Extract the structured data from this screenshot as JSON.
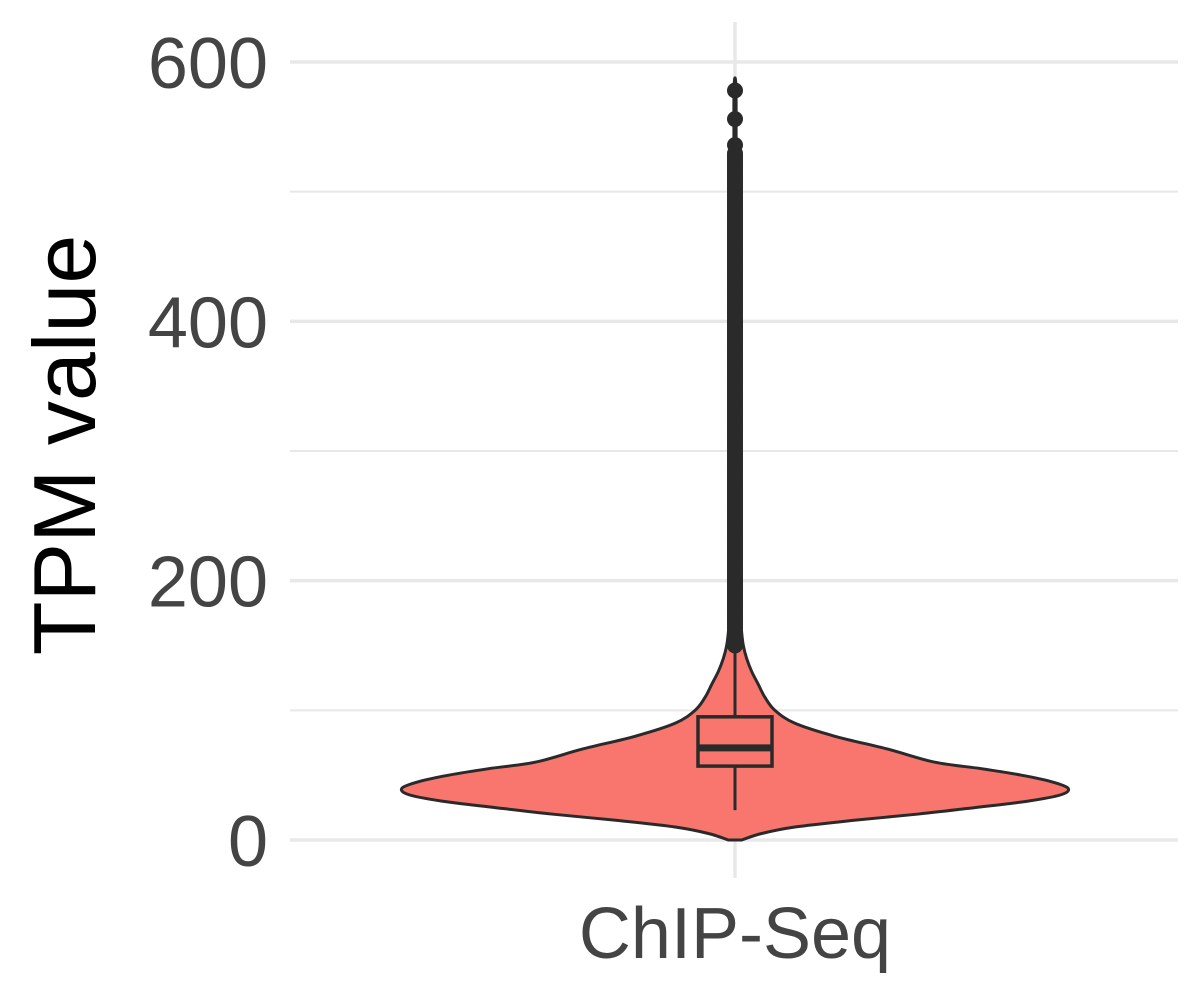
{
  "chart_data": {
    "type": "violin",
    "title": "",
    "xlabel": "",
    "ylabel": "TPM value",
    "categories": [
      "ChIP-Seq"
    ],
    "ylim": [
      -5,
      625
    ],
    "y_ticks": [
      0,
      200,
      400,
      600
    ],
    "y_tick_labels": [
      "0",
      "200",
      "400",
      "600"
    ],
    "grid": true,
    "legend": "none",
    "colors": {
      "fill": "#F8766D",
      "outline": "#2a2a2a",
      "grid": "#e8e8e8",
      "tick_text": "#444444"
    },
    "series": [
      {
        "category": "ChIP-Seq",
        "violin_range": [
          0,
          578
        ],
        "density_profile": [
          [
            0,
            0.02
          ],
          [
            5,
            0.08
          ],
          [
            10,
            0.18
          ],
          [
            15,
            0.35
          ],
          [
            20,
            0.55
          ],
          [
            25,
            0.72
          ],
          [
            30,
            0.88
          ],
          [
            35,
            0.98
          ],
          [
            40,
            1.0
          ],
          [
            45,
            0.95
          ],
          [
            50,
            0.86
          ],
          [
            55,
            0.74
          ],
          [
            60,
            0.6
          ],
          [
            70,
            0.46
          ],
          [
            80,
            0.3
          ],
          [
            90,
            0.18
          ],
          [
            100,
            0.12
          ],
          [
            110,
            0.09
          ],
          [
            120,
            0.07
          ],
          [
            130,
            0.05
          ],
          [
            140,
            0.035
          ],
          [
            150,
            0.025
          ],
          [
            160,
            0.02
          ],
          [
            175,
            0.015
          ],
          [
            190,
            0.012
          ],
          [
            200,
            0.006
          ],
          [
            250,
            0.005
          ],
          [
            300,
            0.005
          ],
          [
            400,
            0.004
          ],
          [
            500,
            0.003
          ],
          [
            578,
            0.003
          ]
        ],
        "box": {
          "q1": 57,
          "median": 71,
          "q3": 95,
          "whisker_low": 23,
          "whisker_high": 150
        },
        "outlier_min": 150,
        "outliers_dense_to": 530,
        "outliers_sparse": [
          536,
          556,
          578
        ]
      }
    ]
  }
}
